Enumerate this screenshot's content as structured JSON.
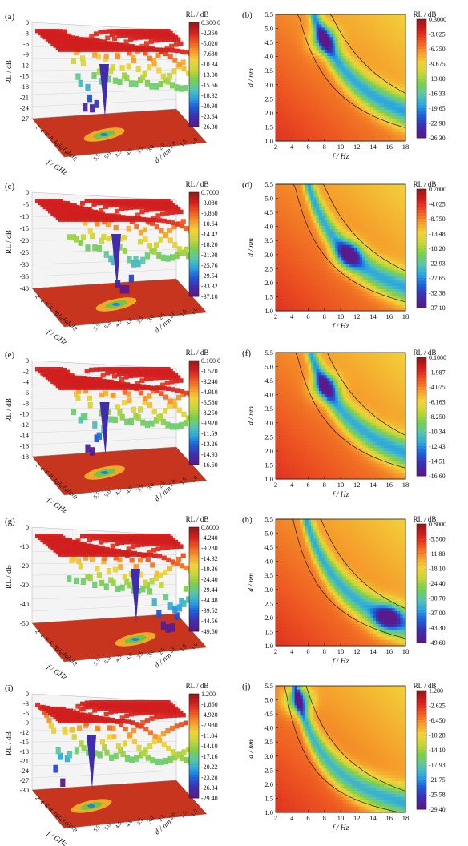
{
  "figure": {
    "palette": [
      "#5a1a8c",
      "#3d2fb0",
      "#1f5fd8",
      "#2aa7e0",
      "#5cc6a8",
      "#7ccf4a",
      "#c8d63a",
      "#f3d23a",
      "#f59a2a",
      "#ee5a22",
      "#d81f1f",
      "#9b1a1a"
    ],
    "contour_color": "#1a1a1a",
    "label_3d_rl": "RL / dB",
    "label_3d_f": "f / GHz",
    "label_3d_d": "d / nm",
    "label_2d_f": "f / Hz",
    "label_2d_d": "d / nm",
    "colorbar_title": "RL / dB"
  },
  "chart_data": [
    {
      "type": "surface3d",
      "panel": "(a)",
      "zlabel": "RL / dB",
      "xlabel": "f / GHz",
      "ylabel": "d / nm",
      "z_ticks": [
        "0",
        "-3",
        "-6",
        "-9",
        "-12",
        "-15",
        "-18",
        "-21",
        "-24",
        "-27"
      ],
      "f_ticks": [
        "2",
        "4",
        "6",
        "8",
        "10",
        "12",
        "14",
        "16",
        "18"
      ],
      "d_ticks": [
        "5.5",
        "5.0",
        "4.5",
        "4.0",
        "3.5",
        "3.0",
        "2.5",
        "2.0",
        "1.5",
        "1.0"
      ],
      "colorbar_title": "RL / dB",
      "colorbar_ticks": [
        "0.300 0",
        "-2.360",
        "-5.020",
        "-7.680",
        "-10.34",
        "-13.00",
        "-15.66",
        "-18.32",
        "-20.98",
        "-23.64",
        "-26.30"
      ],
      "rl_max": 0.3,
      "rl_min": -26.3,
      "minimum": {
        "f": 8.0,
        "d": 4.6,
        "rl": -26.3
      }
    },
    {
      "type": "heatmap",
      "panel": "(b)",
      "xlabel": "f / Hz",
      "ylabel": "d / nm",
      "x_ticks": [
        "2",
        "4",
        "6",
        "8",
        "10",
        "12",
        "14",
        "16",
        "18"
      ],
      "y_ticks": [
        "1.0",
        "1.5",
        "2.0",
        "2.5",
        "3.0",
        "3.5",
        "4.0",
        "4.5",
        "5.0",
        "5.5"
      ],
      "xlim": [
        2,
        18
      ],
      "ylim": [
        1.0,
        5.5
      ],
      "colorbar_title": "RL / dB",
      "colorbar_ticks": [
        "0.3000",
        "-3.025",
        "-6.350",
        "-9.675",
        "-13.00",
        "-16.33",
        "-19.65",
        "-22.98",
        "-26.30"
      ],
      "rl_max": 0.3,
      "rl_min": -26.3,
      "minimum": {
        "f": 8.0,
        "d": 4.6,
        "rl": -26.3
      }
    },
    {
      "type": "surface3d",
      "panel": "(c)",
      "zlabel": "RL / dB",
      "xlabel": "f / GHz",
      "ylabel": "d / nm",
      "z_ticks": [
        "0",
        "-5",
        "-10",
        "-15",
        "-20",
        "-25",
        "-30",
        "-35",
        "-40"
      ],
      "f_ticks": [
        "2",
        "4",
        "6",
        "8",
        "10",
        "12",
        "14",
        "16",
        "18"
      ],
      "d_ticks": [
        "5.5",
        "5.0",
        "4.5",
        "4.0",
        "3.5",
        "3.0",
        "2.5",
        "2.0",
        "1.5",
        "1.0"
      ],
      "colorbar_title": "RL / dB",
      "colorbar_ticks": [
        "0.7000",
        "-3.080",
        "-6.860",
        "-10.64",
        "-14.42",
        "-18.20",
        "-21.98",
        "-25.76",
        "-29.54",
        "-33.32",
        "-37.10"
      ],
      "rl_max": 0.7,
      "rl_min": -37.1,
      "minimum": {
        "f": 11.0,
        "d": 3.0,
        "rl": -37.1
      }
    },
    {
      "type": "heatmap",
      "panel": "(d)",
      "xlabel": "f / Hz",
      "ylabel": "d / nm",
      "x_ticks": [
        "2",
        "4",
        "6",
        "8",
        "10",
        "12",
        "14",
        "16",
        "18"
      ],
      "y_ticks": [
        "1.0",
        "1.5",
        "2.0",
        "2.5",
        "3.0",
        "3.5",
        "4.0",
        "4.5",
        "5.0",
        "5.5"
      ],
      "xlim": [
        2,
        18
      ],
      "ylim": [
        1.0,
        5.5
      ],
      "colorbar_title": "RL / dB",
      "colorbar_ticks": [
        "0.7000",
        "-4.025",
        "-8.750",
        "-13.48",
        "-18.20",
        "-22.93",
        "-27.65",
        "-32.38",
        "-37.10"
      ],
      "rl_max": 0.7,
      "rl_min": -37.1,
      "minimum": {
        "f": 11.0,
        "d": 3.0,
        "rl": -37.1
      }
    },
    {
      "type": "surface3d",
      "panel": "(e)",
      "zlabel": "RL / dB",
      "xlabel": "f / GHz",
      "ylabel": "d / nm",
      "z_ticks": [
        "0",
        "-2",
        "-4",
        "-6",
        "-8",
        "-10",
        "-12",
        "-14",
        "-16",
        "-18"
      ],
      "f_ticks": [
        "2",
        "4",
        "6",
        "8",
        "10",
        "12",
        "14",
        "16",
        "18"
      ],
      "d_ticks": [
        "5.5",
        "5.0",
        "4.5",
        "4.0",
        "3.5",
        "3.0",
        "2.5",
        "2.0",
        "1.5",
        "1.0"
      ],
      "colorbar_title": "RL / dB",
      "colorbar_ticks": [
        "0.100 0",
        "-1.570",
        "-3.240",
        "-4.910",
        "-6.580",
        "-8.250",
        "-9.920",
        "-11.59",
        "-13.26",
        "-14.93",
        "-16.60"
      ],
      "rl_max": 0.1,
      "rl_min": -16.6,
      "minimum": {
        "f": 8.1,
        "d": 4.3,
        "rl": -16.6
      }
    },
    {
      "type": "heatmap",
      "panel": "(f)",
      "xlabel": "f / Hz",
      "ylabel": "d / nm",
      "x_ticks": [
        "2",
        "4",
        "6",
        "8",
        "10",
        "12",
        "14",
        "16",
        "18"
      ],
      "y_ticks": [
        "1.0",
        "1.5",
        "2.0",
        "2.5",
        "3.0",
        "3.5",
        "4.0",
        "4.5",
        "5.0",
        "5.5"
      ],
      "xlim": [
        2,
        18
      ],
      "ylim": [
        1.0,
        5.5
      ],
      "colorbar_title": "RL / dB",
      "colorbar_ticks": [
        "0.1000",
        "-1.987",
        "-4.075",
        "-6.163",
        "-8.250",
        "-10.34",
        "-12.43",
        "-14.51",
        "-16.60"
      ],
      "rl_max": 0.1,
      "rl_min": -16.6,
      "minimum": {
        "f": 8.1,
        "d": 4.3,
        "rl": -16.6
      }
    },
    {
      "type": "surface3d",
      "panel": "(g)",
      "zlabel": "RL / dB",
      "xlabel": "f / GHz",
      "ylabel": "d / nm",
      "z_ticks": [
        "0",
        "-10",
        "-20",
        "-30",
        "-40",
        "-50"
      ],
      "f_ticks": [
        "2",
        "4",
        "6",
        "8",
        "10",
        "12",
        "14",
        "16",
        "18"
      ],
      "d_ticks": [
        "5.5",
        "5.0",
        "4.5",
        "4.0",
        "3.5",
        "3.0",
        "2.5",
        "2.0",
        "1.5",
        "1.0"
      ],
      "colorbar_title": "RL / dB",
      "colorbar_ticks": [
        "0.8000",
        "-4.240",
        "-9.280",
        "-14.32",
        "-19.36",
        "-24.40",
        "-29.44",
        "-34.48",
        "-39.52",
        "-44.56",
        "-49.60"
      ],
      "rl_max": 0.8,
      "rl_min": -49.6,
      "minimum": {
        "f": 15.8,
        "d": 2.0,
        "rl": -49.6
      }
    },
    {
      "type": "heatmap",
      "panel": "(h)",
      "xlabel": "f / Hz",
      "ylabel": "d / nm",
      "x_ticks": [
        "2",
        "4",
        "6",
        "8",
        "10",
        "12",
        "14",
        "16",
        "18"
      ],
      "y_ticks": [
        "1.0",
        "1.5",
        "2.0",
        "2.5",
        "3.0",
        "3.5",
        "4.0",
        "4.5",
        "5.0",
        "5.5"
      ],
      "xlim": [
        2,
        18
      ],
      "ylim": [
        1.0,
        5.5
      ],
      "colorbar_title": "RL / dB",
      "colorbar_ticks": [
        "0.8000",
        "-5.500",
        "-11.80",
        "-18.10",
        "-24.40",
        "-30.70",
        "-37.00",
        "-43.30",
        "-49.60"
      ],
      "rl_max": 0.8,
      "rl_min": -49.6,
      "minimum": {
        "f": 15.8,
        "d": 2.0,
        "rl": -49.6
      }
    },
    {
      "type": "surface3d",
      "panel": "(i)",
      "zlabel": "RL / dB",
      "xlabel": "f / GHz",
      "ylabel": "d / nm",
      "z_ticks": [
        "0",
        "-3",
        "-6",
        "-9",
        "-12",
        "-15",
        "-18",
        "-21",
        "-24",
        "-27",
        "-30"
      ],
      "f_ticks": [
        "2",
        "4",
        "6",
        "8",
        "10",
        "12",
        "14",
        "16",
        "18"
      ],
      "d_ticks": [
        "5.5",
        "5.0",
        "4.5",
        "4.0",
        "3.5",
        "3.0",
        "2.5",
        "2.0",
        "1.5",
        "1.0"
      ],
      "colorbar_title": "RL / dB",
      "colorbar_ticks": [
        "1.200",
        "-1.860",
        "-4.920",
        "-7.980",
        "-11.04",
        "-14.10",
        "-17.16",
        "-20.22",
        "-23.28",
        "-26.34",
        "-29.40"
      ],
      "rl_max": 1.2,
      "rl_min": -29.4,
      "minimum": {
        "f": 4.8,
        "d": 5.0,
        "rl": -29.4
      }
    },
    {
      "type": "heatmap",
      "panel": "(j)",
      "xlabel": "f / Hz",
      "ylabel": "d / nm",
      "x_ticks": [
        "2",
        "4",
        "6",
        "8",
        "10",
        "12",
        "14",
        "16",
        "18"
      ],
      "y_ticks": [
        "1.0",
        "1.5",
        "2.0",
        "2.5",
        "3.0",
        "3.5",
        "4.0",
        "4.5",
        "5.0",
        "5.5"
      ],
      "xlim": [
        2,
        18
      ],
      "ylim": [
        1.0,
        5.5
      ],
      "colorbar_title": "RL / dB",
      "colorbar_ticks": [
        "1.200",
        "-2.625",
        "-6.450",
        "-10.28",
        "-14.10",
        "-17.93",
        "-21.75",
        "-25.58",
        "-29.40"
      ],
      "rl_max": 1.2,
      "rl_min": -29.4,
      "minimum": {
        "f": 4.8,
        "d": 5.0,
        "rl": -29.4
      }
    }
  ]
}
